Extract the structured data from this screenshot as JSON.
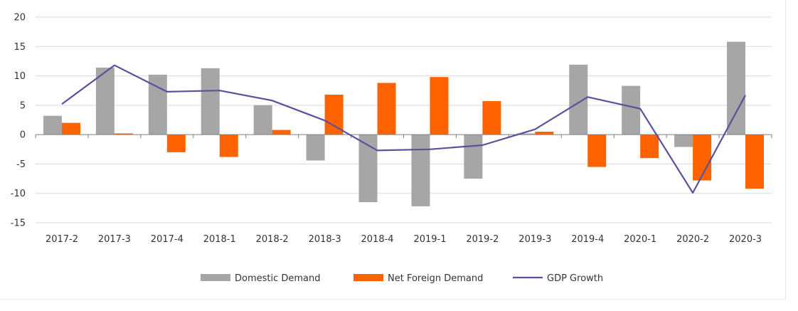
{
  "chart_data": {
    "type": "bar",
    "categories": [
      "2017-2",
      "2017-3",
      "2017-4",
      "2018-1",
      "2018-2",
      "2018-3",
      "2018-4",
      "2019-1",
      "2019-2",
      "2019-3",
      "2019-4",
      "2020-1",
      "2020-2",
      "2020-3"
    ],
    "series": [
      {
        "name": "Domestic Demand",
        "kind": "bar",
        "color": "#a6a6a6",
        "values": [
          3.2,
          11.4,
          10.2,
          11.3,
          5.0,
          -4.4,
          -11.5,
          -12.2,
          -7.5,
          0.2,
          11.9,
          8.3,
          -2.1,
          15.8
        ]
      },
      {
        "name": "Net Foreign Demand",
        "kind": "bar",
        "color": "#ff6200",
        "values": [
          2.0,
          0.2,
          -3.0,
          -3.8,
          0.8,
          6.8,
          8.8,
          9.8,
          5.7,
          0.5,
          -5.5,
          -4.0,
          -7.8,
          -9.2
        ]
      },
      {
        "name": "GDP Growth",
        "kind": "line",
        "color": "#5a509c",
        "values": [
          5.2,
          11.8,
          7.3,
          7.5,
          5.8,
          2.4,
          -2.7,
          -2.5,
          -1.8,
          0.9,
          6.4,
          4.4,
          -9.9,
          6.7
        ]
      }
    ],
    "y_ticks": [
      "20",
      "15",
      "10",
      "5",
      "0",
      "-5",
      "-10",
      "-15"
    ],
    "ylim": [
      -15,
      20
    ],
    "grid": true,
    "legend_position": "bottom",
    "title": "",
    "xlabel": "",
    "ylabel": ""
  }
}
